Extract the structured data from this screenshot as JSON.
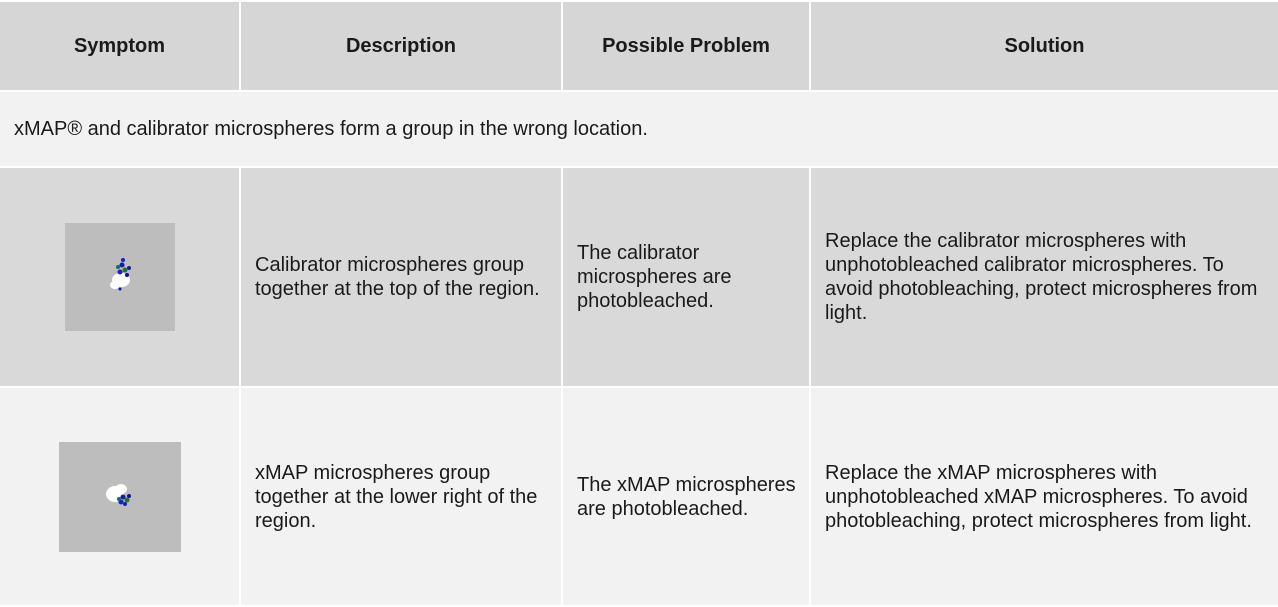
{
  "table": {
    "header": [
      "Symptom",
      "Description",
      "Possible Problem",
      "Solution"
    ],
    "group_row": "xMAP® and calibrator microspheres form a group in the wrong location.",
    "rows": [
      [
        "Calibrator microspheres group together at the top of the region.",
        "The calibrator microspheres are photobleached.",
        "Replace the calibrator microspheres with unphotobleached calibrator microspheres. To avoid photobleaching, protect microspheres from light."
      ],
      [
        "xMAP microspheres group together at the lower right of the region.",
        "The xMAP microspheres are photobleached.",
        "Replace the xMAP microspheres with unphotobleached xMAP microspheres. To avoid photobleaching, protect microspheres from light."
      ]
    ]
  }
}
